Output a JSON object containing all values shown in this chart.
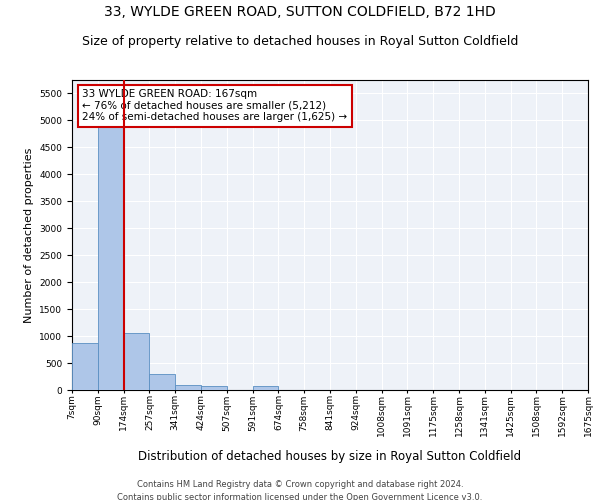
{
  "title": "33, WYLDE GREEN ROAD, SUTTON COLDFIELD, B72 1HD",
  "subtitle": "Size of property relative to detached houses in Royal Sutton Coldfield",
  "xlabel": "Distribution of detached houses by size in Royal Sutton Coldfield",
  "ylabel": "Number of detached properties",
  "footer1": "Contains HM Land Registry data © Crown copyright and database right 2024.",
  "footer2": "Contains public sector information licensed under the Open Government Licence v3.0.",
  "bin_labels": [
    "7sqm",
    "90sqm",
    "174sqm",
    "257sqm",
    "341sqm",
    "424sqm",
    "507sqm",
    "591sqm",
    "674sqm",
    "758sqm",
    "841sqm",
    "924sqm",
    "1008sqm",
    "1091sqm",
    "1175sqm",
    "1258sqm",
    "1341sqm",
    "1425sqm",
    "1508sqm",
    "1592sqm",
    "1675sqm"
  ],
  "bar_heights": [
    870,
    5500,
    1060,
    290,
    95,
    80,
    0,
    70,
    0,
    0,
    0,
    0,
    0,
    0,
    0,
    0,
    0,
    0,
    0,
    0
  ],
  "bar_color": "#aec6e8",
  "bar_edge_color": "#5a8fc2",
  "property_line_color": "#cc0000",
  "annotation_text": "33 WYLDE GREEN ROAD: 167sqm\n← 76% of detached houses are smaller (5,212)\n24% of semi-detached houses are larger (1,625) →",
  "annotation_box_color": "white",
  "annotation_box_edge_color": "#cc0000",
  "ylim": [
    0,
    5750
  ],
  "yticks": [
    0,
    500,
    1000,
    1500,
    2000,
    2500,
    3000,
    3500,
    4000,
    4500,
    5000,
    5500
  ],
  "bg_color": "#eef2f8",
  "grid_color": "white",
  "title_fontsize": 10,
  "subtitle_fontsize": 9,
  "xlabel_fontsize": 8.5,
  "ylabel_fontsize": 8,
  "annot_fontsize": 7.5,
  "tick_fontsize": 6.5,
  "footer_fontsize": 6
}
